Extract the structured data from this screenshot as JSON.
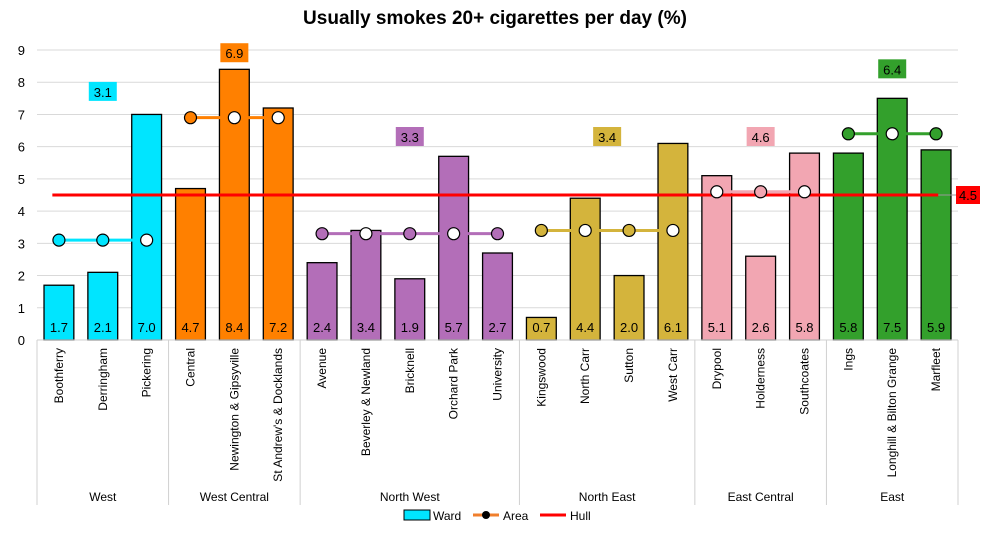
{
  "chart_data": {
    "type": "bar",
    "title": "Usually smokes 20+ cigarettes per day (%)",
    "xlabel": "",
    "ylabel": "",
    "ylim": [
      0,
      9
    ],
    "yticks": [
      "0",
      "1",
      "2",
      "3",
      "4",
      "5",
      "6",
      "7",
      "8",
      "9"
    ],
    "grid": true,
    "legend_position": "bottom",
    "groups": [
      {
        "name": "West",
        "color": "#00E5FF",
        "area": 3.1,
        "area_label": "3.1",
        "wards": [
          "Boothferry",
          "Derringham",
          "Pickering"
        ],
        "values": [
          1.7,
          2.1,
          7.0
        ],
        "labels": [
          "1.7",
          "2.1",
          "7.0"
        ]
      },
      {
        "name": "West Central",
        "color": "#FF8000",
        "area": 6.9,
        "area_label": "6.9",
        "wards": [
          "Central",
          "Newington & Gipsyville",
          "St Andrew's & Docklands"
        ],
        "values": [
          4.7,
          8.4,
          7.2
        ],
        "labels": [
          "4.7",
          "8.4",
          "7.2"
        ]
      },
      {
        "name": "North West",
        "color": "#B36EB8",
        "area": 3.3,
        "area_label": "3.3",
        "wards": [
          "Avenue",
          "Beverley & Newland",
          "Bricknell",
          "Orchard Park",
          "University"
        ],
        "values": [
          2.4,
          3.4,
          1.9,
          5.7,
          2.7
        ],
        "labels": [
          "2.4",
          "3.4",
          "1.9",
          "5.7",
          "2.7"
        ]
      },
      {
        "name": "North East",
        "color": "#D4B43C",
        "area": 3.4,
        "area_label": "3.4",
        "wards": [
          "Kingswood",
          "North Carr",
          "Sutton",
          "West Carr"
        ],
        "values": [
          0.7,
          4.4,
          2.0,
          6.1
        ],
        "labels": [
          "0.7",
          "4.4",
          "2.0",
          "6.1"
        ]
      },
      {
        "name": "East Central",
        "color": "#F2A6B2",
        "area": 4.6,
        "area_label": "4.6",
        "wards": [
          "Drypool",
          "Holderness",
          "Southcoates"
        ],
        "values": [
          5.1,
          2.6,
          5.8
        ],
        "labels": [
          "5.1",
          "2.6",
          "5.8"
        ]
      },
      {
        "name": "East",
        "color": "#33A02C",
        "area": 6.4,
        "area_label": "6.4",
        "wards": [
          "Ings",
          "Longhill & Bilton Grange",
          "Marfleet"
        ],
        "values": [
          5.8,
          7.5,
          5.9
        ],
        "labels": [
          "5.8",
          "7.5",
          "5.9"
        ]
      }
    ],
    "hull": {
      "value": 4.5,
      "label": "4.5",
      "color": "#FF0000"
    },
    "legend": [
      {
        "name": "Ward",
        "type": "bar",
        "color": "#00E5FF"
      },
      {
        "name": "Area",
        "type": "line-marker",
        "color": "#F07F2D"
      },
      {
        "name": "Hull",
        "type": "line",
        "color": "#FF0000"
      }
    ]
  }
}
